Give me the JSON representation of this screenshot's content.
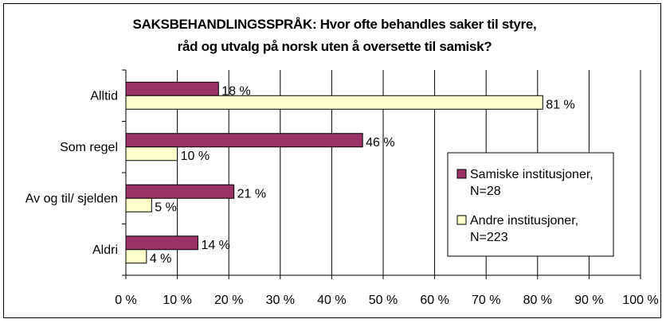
{
  "chart_data": {
    "type": "bar",
    "orientation": "horizontal",
    "title_lines": [
      "SAKSBEHANDLINGSSPRÅK: Hvor ofte behandles saker til styre,",
      "råd og utvalg på norsk uten å oversette til samisk?"
    ],
    "categories": [
      "Alltid",
      "Som regel",
      "Av og til/ sjelden",
      "Aldri"
    ],
    "series": [
      {
        "name": "Samiske institusjoner, N=28",
        "legend_lines": [
          "Samiske institusjoner,",
          "N=28"
        ],
        "values": [
          18,
          46,
          21,
          14
        ],
        "labels": [
          "18 %",
          "46 %",
          "21 %",
          "14 %"
        ],
        "color": "#993366"
      },
      {
        "name": "Andre institusjoner, N=223",
        "legend_lines": [
          "Andre institusjoner,",
          "N=223"
        ],
        "values": [
          81,
          10,
          5,
          4
        ],
        "labels": [
          "81 %",
          "10 %",
          "5 %",
          "4 %"
        ],
        "color": "#FFFFCC"
      }
    ],
    "xlim": [
      0,
      100
    ],
    "xticks": [
      0,
      10,
      20,
      30,
      40,
      50,
      60,
      70,
      80,
      90,
      100
    ],
    "xtick_labels": [
      "0 %",
      "10 %",
      "20 %",
      "30 %",
      "40 %",
      "50 %",
      "60 %",
      "70 %",
      "80 %",
      "90 %",
      "100 %"
    ],
    "grid": "vertical",
    "legend_position": "right",
    "xlabel": "",
    "ylabel": ""
  }
}
